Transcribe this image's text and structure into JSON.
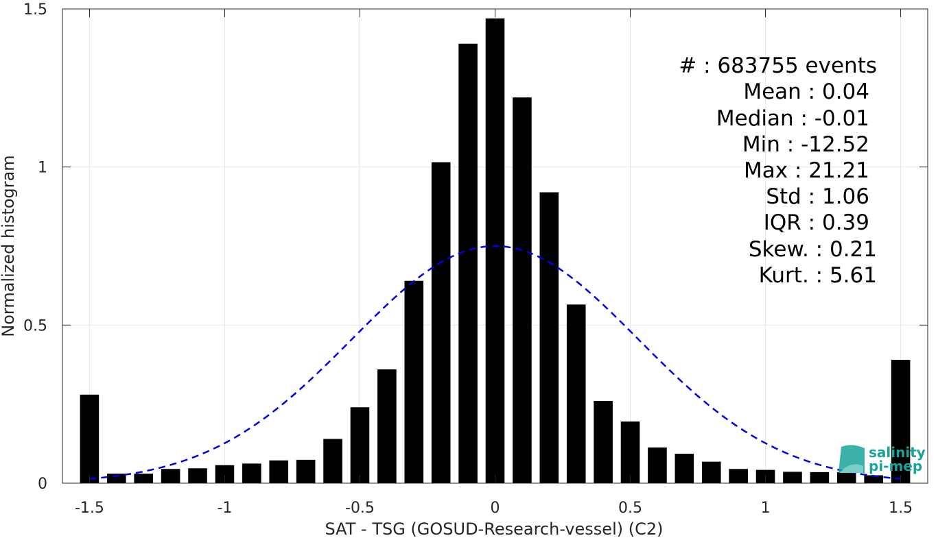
{
  "chart_data": {
    "type": "bar",
    "xlabel": "SAT - TSG (GOSUD-Research-vessel) (C2)",
    "ylabel": "Normalized histogram",
    "xlim": [
      -1.6,
      1.6
    ],
    "ylim": [
      0,
      1.5
    ],
    "xticks": [
      -1.5,
      -1,
      -0.5,
      0,
      0.5,
      1,
      1.5
    ],
    "xtick_labels": [
      "-1.5",
      "-1",
      "-0.5",
      "0",
      "0.5",
      "1",
      "1.5"
    ],
    "yticks": [
      0,
      0.5,
      1,
      1.5
    ],
    "ytick_labels": [
      "0",
      "0.5",
      "1",
      "1.5"
    ],
    "grid": true,
    "bar_width": 0.07,
    "x": [
      -1.5,
      -1.4,
      -1.3,
      -1.2,
      -1.1,
      -1.0,
      -0.9,
      -0.8,
      -0.7,
      -0.6,
      -0.5,
      -0.4,
      -0.3,
      -0.2,
      -0.1,
      0.0,
      0.1,
      0.2,
      0.3,
      0.4,
      0.5,
      0.6,
      0.7,
      0.8,
      0.9,
      1.0,
      1.1,
      1.2,
      1.3,
      1.4,
      1.5
    ],
    "values": [
      0.28,
      0.03,
      0.03,
      0.045,
      0.047,
      0.057,
      0.062,
      0.072,
      0.074,
      0.14,
      0.24,
      0.36,
      0.64,
      1.015,
      1.39,
      1.47,
      1.22,
      0.92,
      0.565,
      0.26,
      0.195,
      0.113,
      0.093,
      0.068,
      0.045,
      0.042,
      0.036,
      0.035,
      0.035,
      0.025,
      0.39
    ],
    "fit_curve": {
      "type": "gaussian",
      "mean": 0.0,
      "peak": 0.75,
      "std": 0.53,
      "x_range": [
        -1.5,
        1.5
      ],
      "color": "#0000e6",
      "style": "dashed"
    },
    "bar_color": "#000000",
    "stats": {
      "events_label": "#  : 683755 events",
      "lines": [
        "Mean : 0.04",
        "Median : -0.01",
        "Min : -12.52",
        "Max : 21.21",
        "Std : 1.06",
        "IQR : 0.39"
      ],
      "extra_lines": [
        "Skew. : 0.21",
        "Kurt. : 5.61"
      ]
    }
  },
  "logo": {
    "line1": "salinity",
    "line2": "pi-mep",
    "color": "#1aa39a"
  }
}
